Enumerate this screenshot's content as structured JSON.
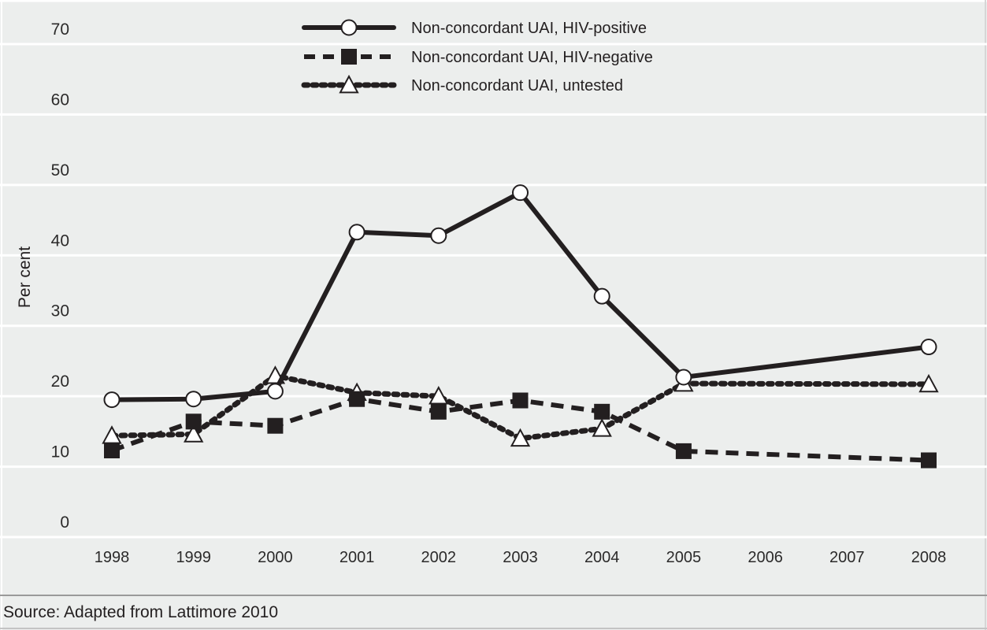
{
  "chart_data": {
    "type": "line",
    "title": "",
    "xlabel": "",
    "ylabel": "Per cent",
    "ylim": [
      0,
      70
    ],
    "yticks": [
      0,
      10,
      20,
      30,
      40,
      50,
      60,
      70
    ],
    "xlim": [
      1998,
      2008
    ],
    "xticks": [
      "1998",
      "1999",
      "2000",
      "2001",
      "2002",
      "2003",
      "2004",
      "2005",
      "2006",
      "2007",
      "2008"
    ],
    "grid": "horizontal",
    "legend_position": "top-center",
    "x": [
      1998,
      1999,
      2000,
      2001,
      2002,
      2003,
      2004,
      2005,
      2008
    ],
    "series": [
      {
        "name": "Non-concordant UAI, HIV-positive",
        "style": "solid",
        "marker": "open-circle",
        "values": [
          19.5,
          19.6,
          20.7,
          43.3,
          42.8,
          48.9,
          34.2,
          22.7,
          27.0
        ]
      },
      {
        "name": "Non-concordant UAI, HIV-negative",
        "style": "dashed",
        "marker": "filled-square",
        "values": [
          12.3,
          16.4,
          15.8,
          19.6,
          17.8,
          19.4,
          17.8,
          12.2,
          10.9
        ]
      },
      {
        "name": "Non-concordant UAI, untested",
        "style": "dotted",
        "marker": "open-triangle",
        "values": [
          14.4,
          14.6,
          22.9,
          20.5,
          20.0,
          14.0,
          15.4,
          21.8,
          21.7
        ]
      }
    ],
    "source": "Source: Adapted from Lattimore 2010"
  },
  "colors": {
    "background": "#eceeed",
    "gridline": "#ffffff",
    "ink": "#231f20",
    "separator": "#9a9a9a"
  }
}
